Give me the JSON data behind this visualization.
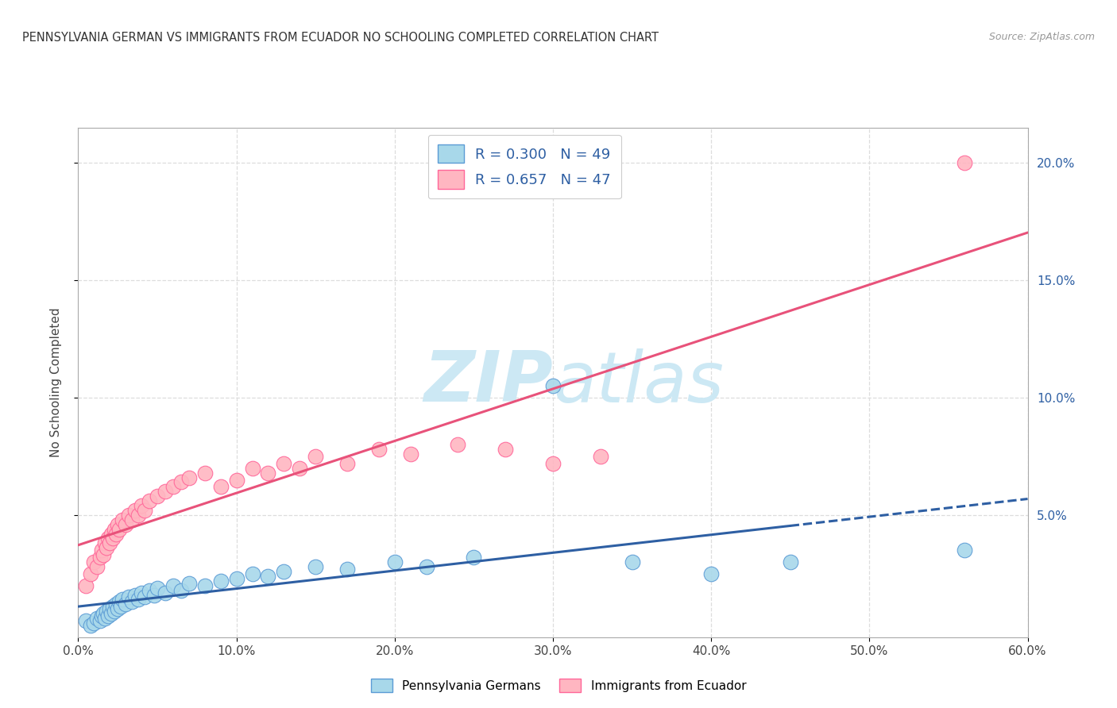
{
  "title": "PENNSYLVANIA GERMAN VS IMMIGRANTS FROM ECUADOR NO SCHOOLING COMPLETED CORRELATION CHART",
  "source": "Source: ZipAtlas.com",
  "ylabel": "No Schooling Completed",
  "xlim": [
    0.0,
    0.6
  ],
  "ylim": [
    -0.002,
    0.215
  ],
  "xticks": [
    0.0,
    0.1,
    0.2,
    0.3,
    0.4,
    0.5,
    0.6
  ],
  "xticklabels": [
    "0.0%",
    "10.0%",
    "20.0%",
    "30.0%",
    "40.0%",
    "50.0%",
    "60.0%"
  ],
  "yticks_right": [
    0.05,
    0.1,
    0.15,
    0.2
  ],
  "ytick_right_labels": [
    "5.0%",
    "10.0%",
    "15.0%",
    "20.0%"
  ],
  "R_blue": 0.3,
  "N_blue": 49,
  "R_pink": 0.657,
  "N_pink": 47,
  "blue_scatter_color": "#a8d8ea",
  "blue_edge_color": "#5b9bd5",
  "pink_scatter_color": "#ffb6c1",
  "pink_edge_color": "#ff6699",
  "blue_line_color": "#2e5fa3",
  "pink_line_color": "#e8527a",
  "watermark_color": "#cce8f4",
  "legend_blue_label": "Pennsylvania Germans",
  "legend_pink_label": "Immigrants from Ecuador",
  "blue_x": [
    0.005,
    0.008,
    0.01,
    0.012,
    0.014,
    0.015,
    0.016,
    0.017,
    0.018,
    0.019,
    0.02,
    0.021,
    0.022,
    0.023,
    0.024,
    0.025,
    0.026,
    0.027,
    0.028,
    0.03,
    0.032,
    0.034,
    0.036,
    0.038,
    0.04,
    0.042,
    0.045,
    0.048,
    0.05,
    0.055,
    0.06,
    0.065,
    0.07,
    0.08,
    0.09,
    0.1,
    0.11,
    0.12,
    0.13,
    0.15,
    0.17,
    0.2,
    0.22,
    0.25,
    0.3,
    0.35,
    0.4,
    0.45,
    0.56
  ],
  "blue_y": [
    0.005,
    0.003,
    0.004,
    0.006,
    0.005,
    0.007,
    0.008,
    0.006,
    0.009,
    0.007,
    0.01,
    0.008,
    0.011,
    0.009,
    0.012,
    0.01,
    0.013,
    0.011,
    0.014,
    0.012,
    0.015,
    0.013,
    0.016,
    0.014,
    0.017,
    0.015,
    0.018,
    0.016,
    0.019,
    0.017,
    0.02,
    0.018,
    0.021,
    0.02,
    0.022,
    0.023,
    0.025,
    0.024,
    0.026,
    0.028,
    0.027,
    0.03,
    0.028,
    0.032,
    0.105,
    0.03,
    0.025,
    0.03,
    0.035
  ],
  "pink_x": [
    0.005,
    0.008,
    0.01,
    0.012,
    0.014,
    0.015,
    0.016,
    0.017,
    0.018,
    0.019,
    0.02,
    0.021,
    0.022,
    0.023,
    0.024,
    0.025,
    0.026,
    0.028,
    0.03,
    0.032,
    0.034,
    0.036,
    0.038,
    0.04,
    0.042,
    0.045,
    0.05,
    0.055,
    0.06,
    0.065,
    0.07,
    0.08,
    0.09,
    0.1,
    0.11,
    0.12,
    0.13,
    0.14,
    0.15,
    0.17,
    0.19,
    0.21,
    0.24,
    0.27,
    0.3,
    0.33,
    0.56
  ],
  "pink_y": [
    0.02,
    0.025,
    0.03,
    0.028,
    0.032,
    0.035,
    0.033,
    0.038,
    0.036,
    0.04,
    0.038,
    0.042,
    0.04,
    0.044,
    0.042,
    0.046,
    0.044,
    0.048,
    0.046,
    0.05,
    0.048,
    0.052,
    0.05,
    0.054,
    0.052,
    0.056,
    0.058,
    0.06,
    0.062,
    0.064,
    0.066,
    0.068,
    0.062,
    0.065,
    0.07,
    0.068,
    0.072,
    0.07,
    0.075,
    0.072,
    0.078,
    0.076,
    0.08,
    0.078,
    0.072,
    0.075,
    0.2
  ],
  "blue_line_x_solid_end": 0.45,
  "blue_line_x_start": 0.0,
  "blue_line_x_end": 0.6,
  "pink_line_x_start": 0.0,
  "pink_line_x_end": 0.6
}
